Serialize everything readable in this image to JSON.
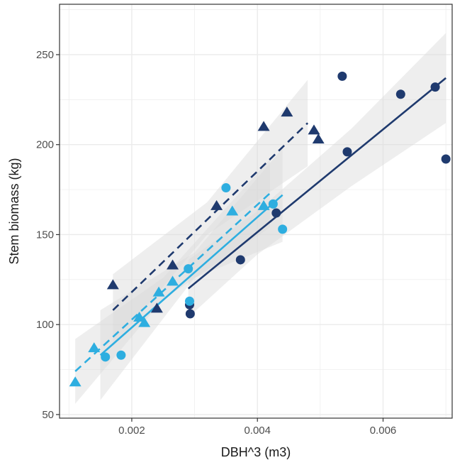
{
  "chart_data": {
    "type": "scatter",
    "title": "",
    "xlabel": "DBH^3 (m3)",
    "ylabel": "Stem biomass (kg)",
    "xlim": [
      0.00085,
      0.0071
    ],
    "ylim": [
      48,
      278
    ],
    "x_ticks": [
      0.002,
      0.004,
      0.006
    ],
    "x_tick_labels": [
      "0.002",
      "0.004",
      "0.006"
    ],
    "y_ticks": [
      50,
      100,
      150,
      200,
      250
    ],
    "y_tick_labels": [
      "50",
      "100",
      "150",
      "200",
      "250"
    ],
    "grid": true,
    "legend": "none",
    "colors": {
      "dark": "#1f3a6e",
      "light": "#2eaee0",
      "mid": "#3a9ccf",
      "band": "#d9d9d9",
      "grid": "#ebebeb",
      "border": "#333333"
    },
    "series": [
      {
        "color": "dark",
        "marker": "circle",
        "line": "solid",
        "points": [
          [
            0.00535,
            238
          ],
          [
            0.00628,
            228
          ],
          [
            0.00683,
            232
          ],
          [
            0.007,
            192
          ],
          [
            0.00543,
            196
          ],
          [
            0.0043,
            162
          ],
          [
            0.00373,
            136
          ],
          [
            0.00292,
            111
          ],
          [
            0.00293,
            106
          ]
        ],
        "fit": [
          [
            0.0029,
            120
          ],
          [
            0.007,
            237
          ]
        ],
        "band": [
          [
            0.0029,
            104,
            136
          ],
          [
            0.004,
            139,
            163
          ],
          [
            0.0055,
            177,
            209
          ],
          [
            0.007,
            212,
            262
          ]
        ]
      },
      {
        "color": "dark",
        "marker": "triangle",
        "line": "dashed",
        "points": [
          [
            0.0017,
            122
          ],
          [
            0.0024,
            109
          ],
          [
            0.00265,
            133
          ],
          [
            0.00335,
            166
          ],
          [
            0.0041,
            210
          ],
          [
            0.00447,
            218
          ],
          [
            0.0049,
            208
          ],
          [
            0.00497,
            203
          ]
        ],
        "fit": [
          [
            0.0017,
            108
          ],
          [
            0.0048,
            212
          ]
        ],
        "band": [
          [
            0.0017,
            88,
            128
          ],
          [
            0.0032,
            150,
            168
          ],
          [
            0.0048,
            188,
            236
          ]
        ]
      },
      {
        "color": "light",
        "marker": "circle",
        "line": "solid",
        "points": [
          [
            0.00158,
            82
          ],
          [
            0.00183,
            83
          ],
          [
            0.00292,
            113
          ],
          [
            0.0029,
            131
          ],
          [
            0.0035,
            176
          ],
          [
            0.00425,
            167
          ],
          [
            0.0044,
            153
          ]
        ],
        "fit": [
          [
            0.0015,
            83
          ],
          [
            0.0044,
            172
          ]
        ],
        "band": [
          [
            0.0015,
            58,
            108
          ],
          [
            0.003,
            126,
            140
          ],
          [
            0.0044,
            146,
            198
          ]
        ]
      },
      {
        "color": "light",
        "marker": "triangle",
        "line": "dashed",
        "points": [
          [
            0.0011,
            68
          ],
          [
            0.0014,
            87
          ],
          [
            0.00212,
            104
          ],
          [
            0.0022,
            101
          ],
          [
            0.00243,
            118
          ],
          [
            0.00265,
            124
          ],
          [
            0.0036,
            163
          ],
          [
            0.0041,
            166
          ]
        ],
        "fit": [
          [
            0.0011,
            74
          ],
          [
            0.0042,
            173
          ]
        ],
        "band": [
          [
            0.0011,
            56,
            92
          ],
          [
            0.0025,
            114,
            126
          ],
          [
            0.0042,
            154,
            192
          ]
        ]
      }
    ]
  }
}
